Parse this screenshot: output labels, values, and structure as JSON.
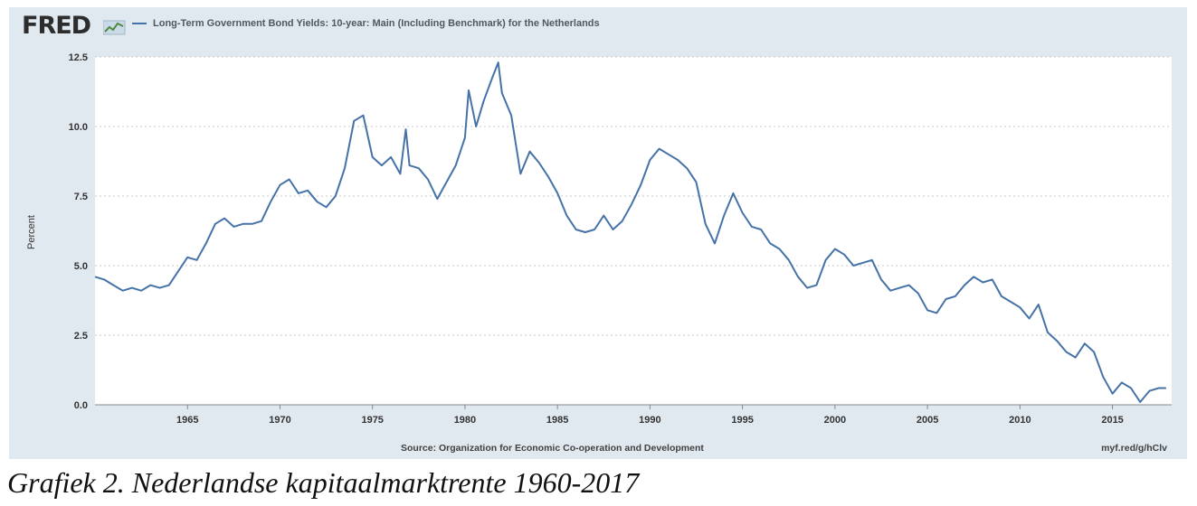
{
  "header": {
    "logo_text": "FRED",
    "legend_label": "Long-Term Government Bond Yields: 10-year: Main (Including Benchmark) for the Netherlands"
  },
  "footer": {
    "source": "Source: Organization for Economic Co-operation and Development",
    "shortlink": "myf.red/g/hClv"
  },
  "caption": "Grafiek 2. Nederlandse kapitaalmarktrente 1960-2017",
  "colors": {
    "line": "#4572a7",
    "panel_background": "#e1e9f0",
    "plot_background": "#ffffff",
    "grid": "#c8c8c8"
  },
  "chart_data": {
    "type": "line",
    "title": "",
    "xlabel": "",
    "ylabel": "Percent",
    "xlim": [
      1960,
      2018.2
    ],
    "ylim": [
      0,
      12.5
    ],
    "x_ticks": [
      1965,
      1970,
      1975,
      1980,
      1985,
      1990,
      1995,
      2000,
      2005,
      2010,
      2015
    ],
    "y_ticks": [
      0.0,
      2.5,
      5.0,
      7.5,
      10.0,
      12.5
    ],
    "y_tick_labels": [
      "0.0",
      "2.5",
      "5.0",
      "7.5",
      "10.0",
      "12.5"
    ],
    "grid": true,
    "legend_position": "top-left",
    "series": [
      {
        "name": "Long-Term Government Bond Yields: 10-year: Main (Including Benchmark) for the Netherlands",
        "x": [
          1960.0,
          1960.5,
          1961.0,
          1961.5,
          1962.0,
          1962.5,
          1963.0,
          1963.5,
          1964.0,
          1964.5,
          1965.0,
          1965.5,
          1966.0,
          1966.5,
          1967.0,
          1967.5,
          1968.0,
          1968.5,
          1969.0,
          1969.5,
          1970.0,
          1970.5,
          1971.0,
          1971.5,
          1972.0,
          1972.5,
          1973.0,
          1973.5,
          1974.0,
          1974.5,
          1974.8,
          1975.0,
          1975.5,
          1976.0,
          1976.5,
          1976.8,
          1977.0,
          1977.5,
          1978.0,
          1978.5,
          1979.0,
          1979.5,
          1980.0,
          1980.2,
          1980.6,
          1981.0,
          1981.5,
          1981.8,
          1982.0,
          1982.5,
          1983.0,
          1983.5,
          1984.0,
          1984.5,
          1985.0,
          1985.5,
          1986.0,
          1986.5,
          1987.0,
          1987.5,
          1988.0,
          1988.5,
          1989.0,
          1989.5,
          1990.0,
          1990.5,
          1991.0,
          1991.5,
          1992.0,
          1992.5,
          1993.0,
          1993.5,
          1994.0,
          1994.5,
          1995.0,
          1995.5,
          1996.0,
          1996.5,
          1997.0,
          1997.5,
          1998.0,
          1998.5,
          1999.0,
          1999.5,
          2000.0,
          2000.5,
          2001.0,
          2001.5,
          2002.0,
          2002.5,
          2003.0,
          2003.5,
          2004.0,
          2004.5,
          2005.0,
          2005.5,
          2006.0,
          2006.5,
          2007.0,
          2007.5,
          2008.0,
          2008.5,
          2009.0,
          2009.5,
          2010.0,
          2010.5,
          2011.0,
          2011.5,
          2012.0,
          2012.5,
          2013.0,
          2013.5,
          2014.0,
          2014.5,
          2015.0,
          2015.5,
          2016.0,
          2016.5,
          2017.0,
          2017.5,
          2017.9
        ],
        "values": [
          4.6,
          4.5,
          4.3,
          4.1,
          4.2,
          4.1,
          4.3,
          4.2,
          4.3,
          4.8,
          5.3,
          5.2,
          5.8,
          6.5,
          6.7,
          6.4,
          6.5,
          6.5,
          6.6,
          7.3,
          7.9,
          8.1,
          7.6,
          7.7,
          7.3,
          7.1,
          7.5,
          8.5,
          10.2,
          10.4,
          9.5,
          8.9,
          8.6,
          8.9,
          8.3,
          9.9,
          8.6,
          8.5,
          8.1,
          7.4,
          8.0,
          8.6,
          9.6,
          11.3,
          10.0,
          10.9,
          11.8,
          12.3,
          11.2,
          10.4,
          8.3,
          9.1,
          8.7,
          8.2,
          7.6,
          6.8,
          6.3,
          6.2,
          6.3,
          6.8,
          6.3,
          6.6,
          7.2,
          7.9,
          8.8,
          9.2,
          9.0,
          8.8,
          8.5,
          8.0,
          6.5,
          5.8,
          6.8,
          7.6,
          6.9,
          6.4,
          6.3,
          5.8,
          5.6,
          5.2,
          4.6,
          4.2,
          4.3,
          5.2,
          5.6,
          5.4,
          5.0,
          5.1,
          5.2,
          4.5,
          4.1,
          4.2,
          4.3,
          4.0,
          3.4,
          3.3,
          3.8,
          3.9,
          4.3,
          4.6,
          4.4,
          4.5,
          3.9,
          3.7,
          3.5,
          3.1,
          3.6,
          2.6,
          2.3,
          1.9,
          1.7,
          2.2,
          1.9,
          1.0,
          0.4,
          0.8,
          0.6,
          0.1,
          0.5,
          0.6,
          0.6
        ]
      }
    ]
  }
}
